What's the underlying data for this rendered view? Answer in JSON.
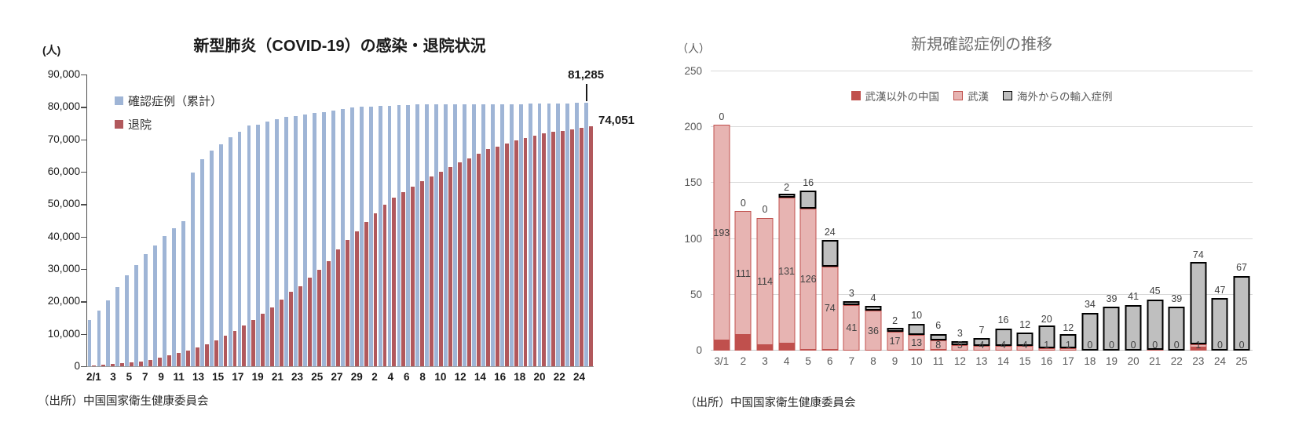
{
  "chart_data": [
    {
      "type": "bar",
      "title": "新型肺炎（COVID-19）の感染・退院状況",
      "unit": "(人)",
      "source": "（出所）中国国家衛生健康委員会",
      "ylim": [
        0,
        90000
      ],
      "ytick_step": 10000,
      "grid": false,
      "legend_position": "top-left-inside",
      "categories": [
        "2/1",
        "2/2",
        "2/3",
        "2/4",
        "2/5",
        "2/6",
        "2/7",
        "2/8",
        "2/9",
        "2/10",
        "2/11",
        "2/12",
        "2/13",
        "2/14",
        "2/15",
        "2/16",
        "2/17",
        "2/18",
        "2/19",
        "2/20",
        "2/21",
        "2/22",
        "2/23",
        "2/24",
        "2/25",
        "2/26",
        "2/27",
        "2/28",
        "2/29",
        "3/1",
        "3/2",
        "3/3",
        "3/4",
        "3/5",
        "3/6",
        "3/7",
        "3/8",
        "3/9",
        "3/10",
        "3/11",
        "3/12",
        "3/13",
        "3/14",
        "3/15",
        "3/16",
        "3/17",
        "3/18",
        "3/19",
        "3/20",
        "3/21",
        "3/22",
        "3/23",
        "3/24",
        "3/25"
      ],
      "tick_labels": [
        "2/1",
        "",
        "3",
        "",
        "5",
        "",
        "7",
        "",
        "9",
        "",
        "11",
        "",
        "13",
        "",
        "15",
        "",
        "17",
        "",
        "19",
        "",
        "21",
        "",
        "23",
        "",
        "25",
        "",
        "27",
        "",
        "29",
        "",
        "2",
        "",
        "4",
        "",
        "6",
        "",
        "8",
        "",
        "10",
        "",
        "12",
        "",
        "14",
        "",
        "16",
        "",
        "18",
        "",
        "20",
        "",
        "22",
        "",
        "24",
        ""
      ],
      "series": [
        {
          "name": "確認症例（累計）",
          "color": "#9FB5D6",
          "values": [
            14380,
            17205,
            20438,
            24324,
            28018,
            31161,
            34546,
            37198,
            40171,
            42638,
            44653,
            59804,
            63851,
            66492,
            68500,
            70548,
            72436,
            74185,
            74576,
            75465,
            76288,
            76936,
            77150,
            77658,
            78064,
            78497,
            78824,
            79251,
            79824,
            80026,
            80151,
            80270,
            80409,
            80552,
            80651,
            80695,
            80735,
            80754,
            80778,
            80793,
            80813,
            80824,
            80844,
            80860,
            80881,
            80894,
            80928,
            80967,
            81008,
            81054,
            81093,
            81171,
            81218,
            81285
          ]
        },
        {
          "name": "退院",
          "color": "#B1585C",
          "values": [
            328,
            475,
            632,
            892,
            1153,
            1540,
            2050,
            2649,
            3281,
            3996,
            4740,
            5911,
            6723,
            8096,
            9419,
            10844,
            12552,
            14376,
            16155,
            18264,
            20659,
            22888,
            24734,
            27323,
            29745,
            32495,
            36117,
            39002,
            41625,
            44462,
            47204,
            49856,
            52045,
            53726,
            55404,
            57065,
            58600,
            59897,
            61475,
            62793,
            64111,
            65541,
            66911,
            67749,
            68679,
            69601,
            70420,
            71150,
            71740,
            72244,
            72703,
            73159,
            73650,
            74051
          ]
        }
      ],
      "annotations": [
        {
          "text": "81,285",
          "series": "確認症例（累計）",
          "category": "3/25"
        },
        {
          "text": "74,051",
          "series": "退院",
          "category": "3/25"
        }
      ]
    },
    {
      "type": "stacked-bar",
      "title": "新規確認症例の推移",
      "unit": "（人）",
      "source": "（出所）中国国家衛生健康委員会",
      "ylim": [
        0,
        250
      ],
      "ytick_step": 50,
      "grid": true,
      "legend_position": "top-center-inside",
      "categories": [
        "3/1",
        "2",
        "3",
        "4",
        "5",
        "6",
        "7",
        "8",
        "9",
        "10",
        "11",
        "12",
        "13",
        "14",
        "15",
        "16",
        "17",
        "18",
        "19",
        "20",
        "21",
        "22",
        "23",
        "24",
        "25"
      ],
      "series": [
        {
          "name": "武漢以外の中国",
          "color": "#C0504D",
          "border": "#C0504D",
          "show_labels": false,
          "values": [
            9,
            14,
            5,
            6,
            1,
            1,
            0,
            0,
            0,
            1,
            1,
            0,
            0,
            0,
            0,
            0,
            0,
            0,
            0,
            0,
            1,
            0,
            3,
            0,
            0
          ]
        },
        {
          "name": "武漢",
          "color": "#E7B4B2",
          "border": "#C0504D",
          "show_labels": true,
          "values": [
            193,
            111,
            114,
            131,
            126,
            74,
            41,
            36,
            17,
            13,
            8,
            5,
            4,
            4,
            4,
            1,
            1,
            0,
            0,
            0,
            0,
            0,
            1,
            0,
            0
          ]
        },
        {
          "name": "海外からの輸入症例",
          "color": "#BFBFBF",
          "border": "#000000",
          "show_labels": true,
          "label_position": "above-bar",
          "values": [
            0,
            0,
            0,
            2,
            16,
            24,
            3,
            4,
            2,
            10,
            6,
            3,
            7,
            16,
            12,
            20,
            12,
            34,
            39,
            41,
            45,
            39,
            74,
            47,
            67
          ]
        }
      ]
    }
  ]
}
